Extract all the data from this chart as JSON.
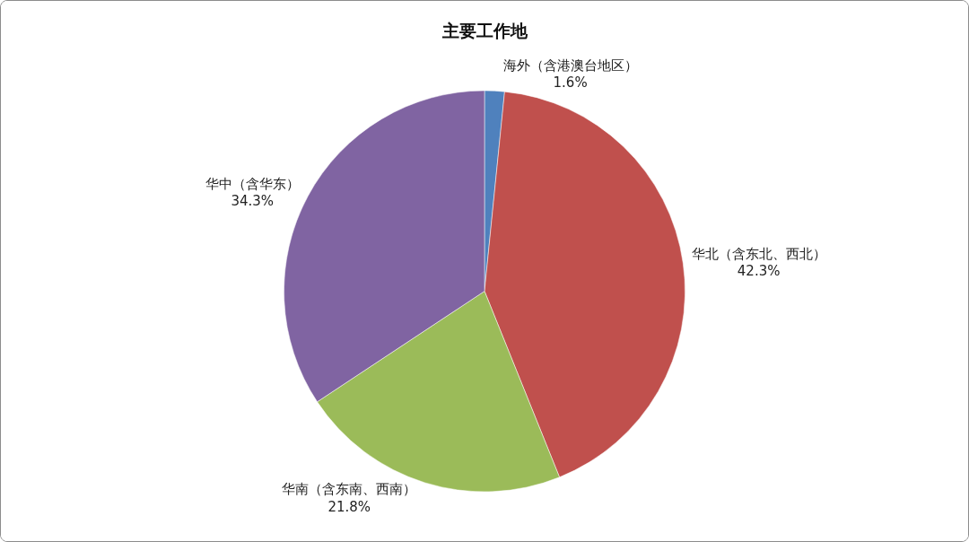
{
  "chart_data": {
    "type": "pie",
    "title": "主要工作地",
    "categories": [
      "海外（含港澳台地区）",
      "华北（含东北、西北）",
      "华南（含东南、西南）",
      "华中（含华东）"
    ],
    "values": [
      1.6,
      42.3,
      21.8,
      34.3
    ],
    "value_labels": [
      "1.6%",
      "42.3%",
      "21.8%",
      "34.3%"
    ],
    "colors": [
      "#4f81bd",
      "#c0504d",
      "#9bbb59",
      "#8064a2"
    ],
    "legend": false
  }
}
